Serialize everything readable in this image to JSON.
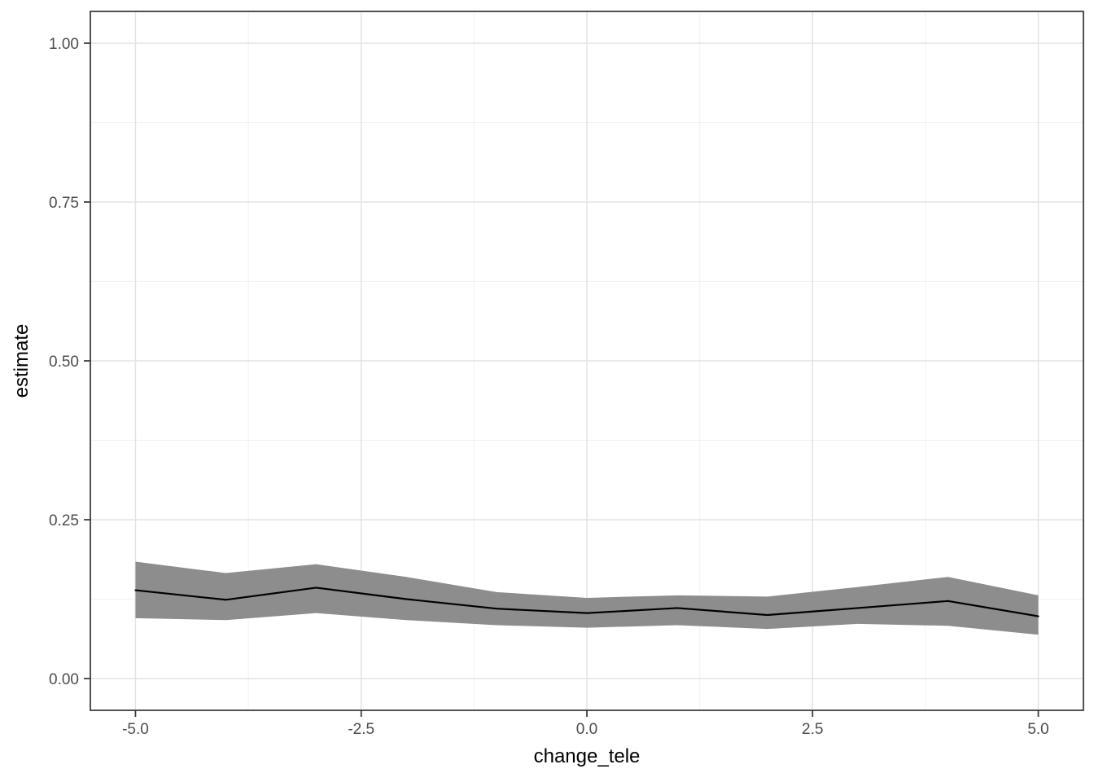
{
  "chart_data": {
    "type": "line",
    "title": "",
    "xlabel": "change_tele",
    "ylabel": "estimate",
    "x": [
      -5,
      -4,
      -3,
      -2,
      -1,
      0,
      1,
      2,
      3,
      4,
      5
    ],
    "series": [
      {
        "name": "estimate",
        "values": [
          0.139,
          0.124,
          0.143,
          0.125,
          0.11,
          0.103,
          0.111,
          0.1,
          0.111,
          0.122,
          0.098
        ]
      },
      {
        "name": "ci_lower",
        "values": [
          0.095,
          0.092,
          0.103,
          0.092,
          0.084,
          0.08,
          0.084,
          0.078,
          0.086,
          0.083,
          0.069
        ]
      },
      {
        "name": "ci_upper",
        "values": [
          0.184,
          0.166,
          0.18,
          0.16,
          0.136,
          0.127,
          0.131,
          0.129,
          0.144,
          0.16,
          0.131
        ]
      }
    ],
    "xlim": [
      -5.5,
      5.5
    ],
    "ylim": [
      -0.05,
      1.05
    ],
    "x_ticks": {
      "major": [
        -5,
        -2.5,
        0,
        2.5,
        5
      ],
      "minor": [
        -3.75,
        -1.25,
        1.25,
        3.75
      ],
      "labels": [
        "-5.0",
        "-2.5",
        "0.0",
        "2.5",
        "5.0"
      ]
    },
    "y_ticks": {
      "major": [
        0,
        0.25,
        0.5,
        0.75,
        1
      ],
      "minor": [
        0.125,
        0.375,
        0.625,
        0.875
      ],
      "labels": [
        "0.00",
        "0.25",
        "0.50",
        "0.75",
        "1.00"
      ]
    },
    "grid": "major+minor",
    "legend": "none",
    "colors": {
      "background": "#ffffff",
      "panel_background": "#ffffff",
      "grid_major": "#e3e3e3",
      "grid_minor": "#f1f1f1",
      "panel_border": "#343434",
      "tick_mark": "#343434",
      "tick_label": "#4d4d4d",
      "axis_title": "#000000",
      "ribbon": "#8d8d8d",
      "line": "#000000"
    }
  }
}
